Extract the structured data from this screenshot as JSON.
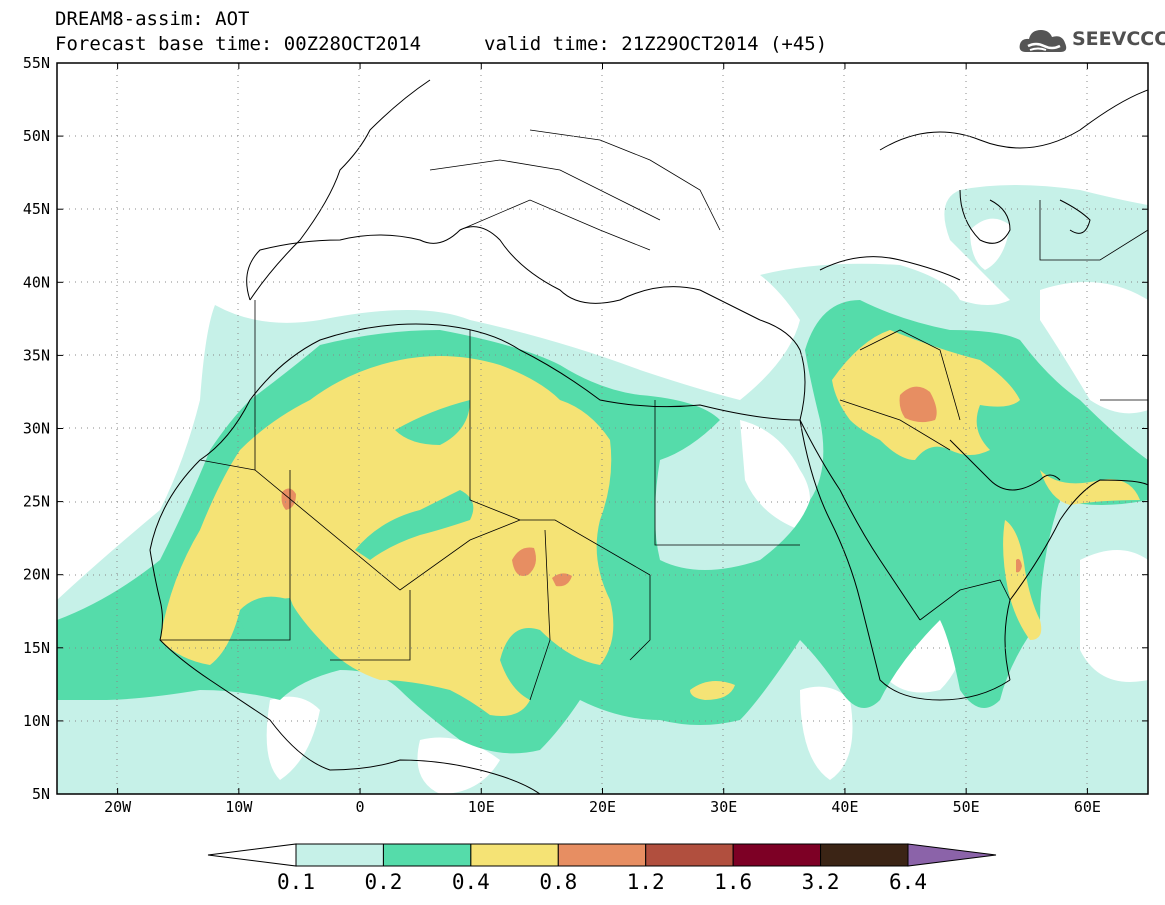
{
  "header": {
    "title_line1": "DREAM8-assim: AOT",
    "base_time": "Forecast base time: 00Z28OCT2014",
    "valid_time": "valid time: 21Z29OCT2014 (+45)",
    "logo_text": "SEEVCCC",
    "logo_icon": "cloud-icon"
  },
  "map": {
    "lon_range": [
      -25,
      65
    ],
    "lat_range": [
      5,
      55
    ],
    "lat_ticks": [
      "5N",
      "10N",
      "15N",
      "20N",
      "25N",
      "30N",
      "35N",
      "40N",
      "45N",
      "50N",
      "55N"
    ],
    "lon_ticks": [
      "20W",
      "10W",
      "0",
      "10E",
      "20E",
      "30E",
      "40E",
      "50E",
      "60E"
    ]
  },
  "legend": {
    "levels": [
      "0.1",
      "0.2",
      "0.4",
      "0.8",
      "1.2",
      "1.6",
      "3.2",
      "6.4"
    ],
    "colors": [
      "#ffffff",
      "#c6f1e8",
      "#55dcaa",
      "#f5e375",
      "#e78e62",
      "#b14f3e",
      "#7d0025",
      "#3b2415",
      "#8b63a9"
    ]
  }
}
